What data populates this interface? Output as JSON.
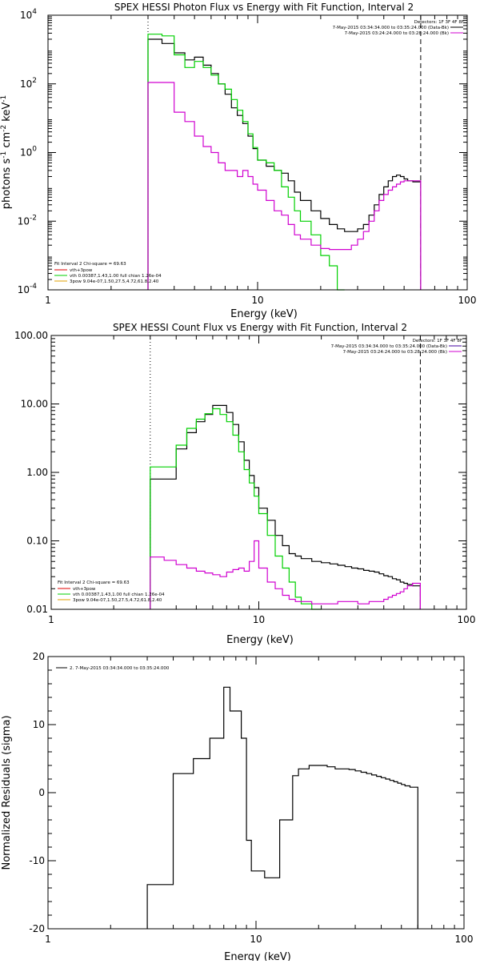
{
  "colors": {
    "black": "#000000",
    "green": "#00d000",
    "magenta": "#d000d0",
    "red": "#e00000",
    "orange": "#e0a000",
    "purple": "#4000a0"
  },
  "chart_data": [
    {
      "type": "line",
      "title": "SPEX HESSI Photon Flux vs Energy with Fit Function, Interval 2",
      "xlabel": "Energy (keV)",
      "ylabel": "photons s⁻¹ cm⁻² keV⁻¹",
      "xscale": "log",
      "yscale": "log",
      "xlim": [
        1,
        100
      ],
      "ylim": [
        0.0001,
        10000
      ],
      "x_ticks": [
        {
          "v": 1,
          "l": "1"
        },
        {
          "v": 10,
          "l": "10"
        },
        {
          "v": 100,
          "l": "100"
        }
      ],
      "y_ticks": [
        {
          "v": 0.0001,
          "l": "10",
          "e": "-4"
        },
        {
          "v": 0.01,
          "l": "10",
          "e": "-2"
        },
        {
          "v": 1,
          "l": "10",
          "e": "0"
        },
        {
          "v": 100,
          "l": "10",
          "e": "2"
        },
        {
          "v": 10000,
          "l": "10",
          "e": "4"
        }
      ],
      "vlines": [
        {
          "x": 3,
          "style": "dotted"
        },
        {
          "x": 60,
          "style": "dashed"
        }
      ],
      "legend_right": {
        "title": "Detectors: 1F 3F 4F 8F",
        "entries": [
          {
            "text": "7-May-2015 03:34:34.000 to 03:35:24.000 (Data-Bk)",
            "color": "#000000"
          },
          {
            "text": "7-May-2015 03:24:24.000 to 03:28:24.000 (Bk)",
            "color": "#d000d0"
          }
        ]
      },
      "legend_left": {
        "title": "Fit Interval 2   Chi-square = 69.63",
        "entries": [
          {
            "text": "vth+3pow",
            "color": "#e00000"
          },
          {
            "text": "vth 0.00387,1.43,1.00  full chian 1.26e-04",
            "color": "#00d000"
          },
          {
            "text": "3pow 9.04e-07,1.50,27.5,4.72,61.8,2.40",
            "color": "#e0a000"
          }
        ]
      },
      "series": [
        {
          "color": "#000000",
          "edges": [
            3,
            3.5,
            4,
            4.5,
            5,
            5.5,
            6,
            6.5,
            7,
            7.5,
            8,
            8.5,
            9,
            9.5,
            10,
            11,
            12,
            13,
            14,
            15,
            16,
            18,
            20,
            22,
            24,
            26,
            28,
            30,
            32,
            34,
            36,
            38,
            40,
            42,
            44,
            46,
            48,
            50,
            52,
            55,
            60
          ],
          "values": [
            2000,
            1500,
            800,
            500,
            600,
            350,
            200,
            100,
            50,
            20,
            12,
            7,
            3,
            1.3,
            0.6,
            0.4,
            0.3,
            0.25,
            0.15,
            0.07,
            0.04,
            0.02,
            0.012,
            0.008,
            0.006,
            0.005,
            0.005,
            0.006,
            0.008,
            0.015,
            0.03,
            0.06,
            0.1,
            0.15,
            0.2,
            0.22,
            0.2,
            0.17,
            0.15,
            0.14
          ]
        },
        {
          "color": "#00d000",
          "edges": [
            3,
            3.5,
            4,
            4.5,
            5,
            5.5,
            6,
            6.5,
            7,
            7.5,
            8,
            8.5,
            9,
            9.5,
            10,
            11,
            12,
            13,
            14,
            15,
            16,
            18,
            20,
            22,
            24,
            26
          ],
          "values": [
            2800,
            2500,
            700,
            300,
            450,
            300,
            180,
            100,
            70,
            35,
            17,
            8,
            3.5,
            1.4,
            0.6,
            0.5,
            0.3,
            0.1,
            0.05,
            0.02,
            0.01,
            0.004,
            0.001,
            0.0005,
            0.0001
          ]
        },
        {
          "color": "#d000d0",
          "edges": [
            3,
            3.5,
            4,
            4.5,
            5,
            5.5,
            6,
            6.5,
            7,
            7.5,
            8,
            8.5,
            9,
            9.5,
            10,
            11,
            12,
            13,
            14,
            15,
            16,
            18,
            20,
            22,
            24,
            26,
            28,
            30,
            32,
            34,
            36,
            38,
            40,
            42,
            44,
            46,
            48,
            50,
            52,
            55,
            60
          ],
          "values": [
            110,
            110,
            15,
            8,
            3,
            1.5,
            1,
            0.5,
            0.3,
            0.3,
            0.2,
            0.3,
            0.2,
            0.12,
            0.08,
            0.04,
            0.02,
            0.015,
            0.008,
            0.004,
            0.003,
            0.002,
            0.0016,
            0.0015,
            0.0015,
            0.0015,
            0.002,
            0.003,
            0.005,
            0.01,
            0.02,
            0.04,
            0.06,
            0.08,
            0.1,
            0.12,
            0.14,
            0.15,
            0.15,
            0.15
          ]
        }
      ]
    },
    {
      "type": "line",
      "title": "SPEX HESSI Count Flux vs Energy with Fit Function, Interval 2",
      "xlabel": "Energy (keV)",
      "ylabel": "",
      "xscale": "log",
      "yscale": "log",
      "xlim": [
        1,
        100
      ],
      "ylim": [
        0.01,
        100
      ],
      "x_ticks": [
        {
          "v": 1,
          "l": "1"
        },
        {
          "v": 10,
          "l": "10"
        },
        {
          "v": 100,
          "l": "100"
        }
      ],
      "y_ticks": [
        {
          "v": 0.01,
          "l": "0.01"
        },
        {
          "v": 0.1,
          "l": "0.10"
        },
        {
          "v": 1,
          "l": "1.00"
        },
        {
          "v": 10,
          "l": "10.00"
        },
        {
          "v": 100,
          "l": "100.00"
        }
      ],
      "vlines": [
        {
          "x": 3,
          "style": "dotted"
        },
        {
          "x": 60,
          "style": "dashed"
        }
      ],
      "legend_right": {
        "title": "Detectors: 1F 3F 4F 8F",
        "entries": [
          {
            "text": "7-May-2015 03:34:34.000 to 03:35:24.000 (Data-Bk)",
            "color": "#4000a0"
          },
          {
            "text": "7-May-2015 03:24:24.000 to 03:28:24.000 (Bk)",
            "color": "#d000d0"
          }
        ]
      },
      "legend_left": {
        "title": "Fit Interval 2   Chi-square = 69.63",
        "entries": [
          {
            "text": "vth+3pow",
            "color": "#e00000"
          },
          {
            "text": "vth 0.00387,1.43,1.00  full chian 1.26e-04",
            "color": "#00d000"
          },
          {
            "text": "3pow 9.04e-07,1.50,27.5,4.72,61.8,2.40",
            "color": "#e0a000"
          }
        ]
      },
      "series": [
        {
          "color": "#000000",
          "edges": [
            3,
            3.5,
            4,
            4.5,
            5,
            5.5,
            6,
            6.5,
            7,
            7.5,
            8,
            8.5,
            9,
            9.5,
            10,
            11,
            12,
            13,
            14,
            15,
            16,
            18,
            20,
            22,
            24,
            26,
            28,
            30,
            32,
            34,
            36,
            38,
            40,
            42,
            44,
            46,
            48,
            50,
            52,
            55,
            60
          ],
          "values": [
            0.8,
            0.8,
            2.2,
            3.8,
            5.5,
            7,
            9.5,
            9.5,
            7.5,
            5,
            2.8,
            1.5,
            0.9,
            0.6,
            0.3,
            0.2,
            0.12,
            0.085,
            0.065,
            0.06,
            0.055,
            0.05,
            0.048,
            0.046,
            0.044,
            0.042,
            0.04,
            0.039,
            0.037,
            0.036,
            0.035,
            0.033,
            0.031,
            0.03,
            0.028,
            0.027,
            0.025,
            0.024,
            0.023,
            0.022
          ]
        },
        {
          "color": "#00d000",
          "edges": [
            3,
            3.5,
            4,
            4.5,
            5,
            5.5,
            6,
            6.5,
            7,
            7.5,
            8,
            8.5,
            9,
            9.5,
            10,
            11,
            12,
            13,
            14,
            15,
            16,
            18,
            20
          ],
          "values": [
            1.2,
            1.2,
            2.5,
            4.4,
            6,
            7.2,
            8.5,
            7,
            5.5,
            3.5,
            2,
            1.1,
            0.7,
            0.45,
            0.25,
            0.12,
            0.06,
            0.04,
            0.025,
            0.015,
            0.012,
            0.01
          ]
        },
        {
          "color": "#d000d0",
          "edges": [
            3,
            3.5,
            4,
            4.5,
            5,
            5.5,
            6,
            6.5,
            7,
            7.5,
            8,
            8.5,
            9,
            9.5,
            10,
            11,
            12,
            13,
            14,
            15,
            16,
            18,
            20,
            22,
            24,
            26,
            28,
            30,
            32,
            34,
            36,
            38,
            40,
            42,
            44,
            46,
            48,
            50,
            52,
            55,
            60
          ],
          "values": [
            0.058,
            0.052,
            0.045,
            0.04,
            0.036,
            0.034,
            0.032,
            0.03,
            0.035,
            0.038,
            0.04,
            0.036,
            0.05,
            0.1,
            0.04,
            0.025,
            0.02,
            0.016,
            0.014,
            0.013,
            0.013,
            0.012,
            0.012,
            0.012,
            0.013,
            0.013,
            0.013,
            0.012,
            0.012,
            0.013,
            0.013,
            0.013,
            0.014,
            0.015,
            0.016,
            0.017,
            0.018,
            0.02,
            0.022,
            0.024
          ]
        }
      ]
    },
    {
      "type": "line",
      "title": "",
      "xlabel": "Energy (keV)",
      "ylabel": "Normalized Residuals (sigma)",
      "xscale": "log",
      "yscale": "linear",
      "xlim": [
        1,
        100
      ],
      "ylim": [
        -20,
        20
      ],
      "x_ticks": [
        {
          "v": 1,
          "l": "1"
        },
        {
          "v": 10,
          "l": "10"
        },
        {
          "v": 100,
          "l": "100"
        }
      ],
      "y_ticks": [
        {
          "v": -20,
          "l": "-20"
        },
        {
          "v": -10,
          "l": "-10"
        },
        {
          "v": 0,
          "l": "0"
        },
        {
          "v": 10,
          "l": "10"
        },
        {
          "v": 20,
          "l": "20"
        }
      ],
      "vlines": [],
      "legend_top": {
        "entries": [
          {
            "text": "2.  7-May-2015 03:34:34.000 to 03:35:24.000",
            "color": "#000000"
          }
        ]
      },
      "series": [
        {
          "color": "#000000",
          "edges": [
            3,
            3.5,
            4,
            4.5,
            5,
            5.5,
            6,
            6.5,
            7,
            7.5,
            8,
            8.5,
            9,
            9.5,
            10,
            11,
            12,
            13,
            14,
            15,
            16,
            18,
            20,
            22,
            24,
            26,
            28,
            30,
            32,
            34,
            36,
            38,
            40,
            42,
            44,
            46,
            48,
            50,
            52,
            55,
            60
          ],
          "values": [
            -13.5,
            -13.5,
            2.8,
            2.8,
            5.0,
            5.0,
            8.0,
            8.0,
            15.5,
            12.0,
            12.0,
            8.0,
            -7.0,
            -11.5,
            -11.5,
            -12.5,
            -12.5,
            -4.0,
            -4.0,
            2.5,
            3.5,
            4.0,
            4.0,
            3.8,
            3.5,
            3.5,
            3.4,
            3.2,
            3.0,
            2.8,
            2.6,
            2.4,
            2.2,
            2.0,
            1.8,
            1.6,
            1.4,
            1.2,
            1.0,
            0.8
          ]
        }
      ]
    }
  ]
}
